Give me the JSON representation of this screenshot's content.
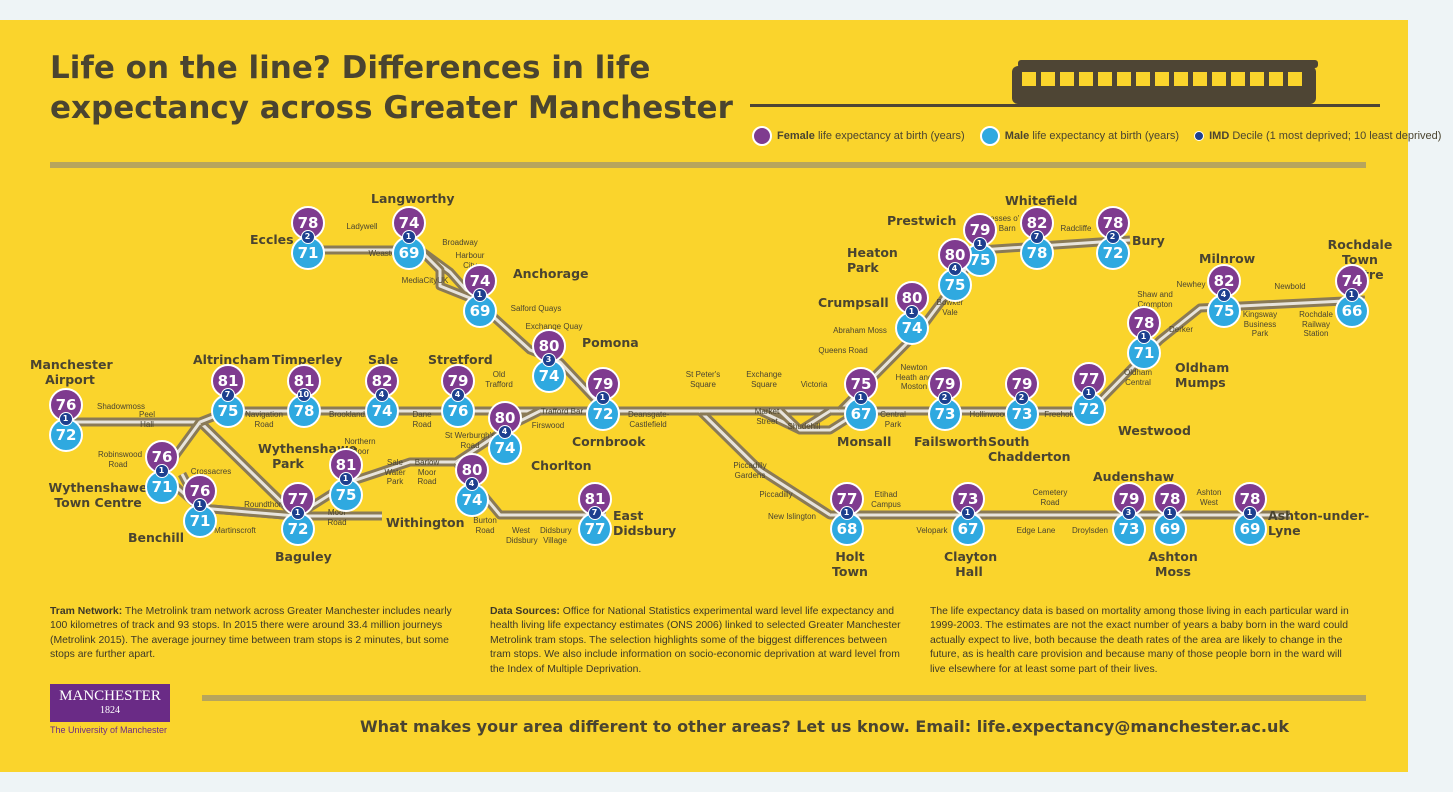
{
  "title_line1": "Life on the line? Differences in life",
  "title_line2": "expectancy across Greater Manchester",
  "legend": {
    "female_bold": "Female",
    "female_rest": "life expectancy at birth (years)",
    "male_bold": "Male",
    "male_rest": "life expectancy at birth (years)",
    "imd_bold": "IMD",
    "imd_rest": "Decile (1 most deprived; 10 least deprived)"
  },
  "colors": {
    "female": "#7f3b8f",
    "male": "#2fa9e0",
    "imd": "#1d3f8f",
    "background": "#fad42c",
    "track": "#8a7a56"
  },
  "stations": [
    {
      "id": "airport",
      "name": "Manchester Airport",
      "female": 76,
      "male": 72,
      "imd": 1
    },
    {
      "id": "wythtc",
      "name": "Wythenshawe Town Centre",
      "female": 76,
      "male": 71,
      "imd": 1
    },
    {
      "id": "benchill",
      "name": "Benchill",
      "female": 76,
      "male": 71,
      "imd": 1
    },
    {
      "id": "baguley",
      "name": "Baguley",
      "female": 77,
      "male": 72,
      "imd": 1
    },
    {
      "id": "wythpark",
      "name": "Wythenshawe Park",
      "female": 81,
      "male": 75,
      "imd": 1
    },
    {
      "id": "altrincham",
      "name": "Altrincham",
      "female": 81,
      "male": 75,
      "imd": 7
    },
    {
      "id": "timperley",
      "name": "Timperley",
      "female": 81,
      "male": 78,
      "imd": 10
    },
    {
      "id": "sale",
      "name": "Sale",
      "female": 82,
      "male": 74,
      "imd": 4
    },
    {
      "id": "stretford",
      "name": "Stretford",
      "female": 79,
      "male": 76,
      "imd": 4
    },
    {
      "id": "eccles",
      "name": "Eccles",
      "female": 78,
      "male": 71,
      "imd": 2
    },
    {
      "id": "langworthy",
      "name": "Langworthy",
      "female": 74,
      "male": 69,
      "imd": 1
    },
    {
      "id": "anchorage",
      "name": "Anchorage",
      "female": 74,
      "male": 69,
      "imd": 1
    },
    {
      "id": "pomona",
      "name": "Pomona",
      "female": 80,
      "male": 74,
      "imd": 3
    },
    {
      "id": "cornbrook",
      "name": "Cornbrook",
      "female": 79,
      "male": 72,
      "imd": 1
    },
    {
      "id": "chorlton",
      "name": "Chorlton",
      "female": 80,
      "male": 74,
      "imd": 4
    },
    {
      "id": "withington",
      "name": "Withington",
      "female": 80,
      "male": 74,
      "imd": 4
    },
    {
      "id": "eastdidsbury",
      "name": "East Didsbury",
      "female": 81,
      "male": 77,
      "imd": 7
    },
    {
      "id": "prestwich",
      "name": "Prestwich",
      "female": 79,
      "male": 75,
      "imd": 1
    },
    {
      "id": "heatonpark",
      "name": "Heaton Park",
      "female": 80,
      "male": 75,
      "imd": 4
    },
    {
      "id": "whitefield",
      "name": "Whitefield",
      "female": 82,
      "male": 78,
      "imd": 7
    },
    {
      "id": "bury",
      "name": "Bury",
      "female": 78,
      "male": 72,
      "imd": 2
    },
    {
      "id": "crumpsall",
      "name": "Crumpsall",
      "female": 80,
      "male": 74,
      "imd": 1
    },
    {
      "id": "monsall",
      "name": "Monsall",
      "female": 75,
      "male": 67,
      "imd": 1
    },
    {
      "id": "failsworth",
      "name": "Failsworth",
      "female": 79,
      "male": 73,
      "imd": 2
    },
    {
      "id": "southchad",
      "name": "South Chadderton",
      "female": 79,
      "male": 73,
      "imd": 2
    },
    {
      "id": "westwood",
      "name": "Westwood",
      "female": 77,
      "male": 72,
      "imd": 1
    },
    {
      "id": "oldhammumps",
      "name": "Oldham Mumps",
      "female": 78,
      "male": 71,
      "imd": 1
    },
    {
      "id": "milnrow",
      "name": "Milnrow",
      "female": 82,
      "male": 75,
      "imd": 4
    },
    {
      "id": "rochdale",
      "name": "Rochdale Town Centre",
      "female": 74,
      "male": 66,
      "imd": 1
    },
    {
      "id": "holttown",
      "name": "Holt Town",
      "female": 77,
      "male": 68,
      "imd": 1
    },
    {
      "id": "claytonhall",
      "name": "Clayton Hall",
      "female": 73,
      "male": 67,
      "imd": 1
    },
    {
      "id": "audenshaw",
      "name": "Audenshaw",
      "female": 79,
      "male": 73,
      "imd": 3
    },
    {
      "id": "ashtonmoss",
      "name": "Ashton Moss",
      "female": 78,
      "male": 69,
      "imd": 1
    },
    {
      "id": "ashtonul",
      "name": "Ashton-under-Lyne",
      "female": 78,
      "male": 69,
      "imd": 1
    }
  ],
  "stops": {
    "shadowmoss": "Shadowmoss",
    "peelhall": "Peel Hall",
    "robinswood": "Robinswood Road",
    "crossacres": "Crossacres",
    "roundthorn": "Roundthorn",
    "martinscroft": "Martinscroft",
    "moorroad": "Moor Road",
    "northernmoor": "Northern Moor",
    "salewater": "Sale Water Park",
    "barlowmoor": "Barlow Moor Road",
    "navigation": "Navigation Road",
    "brooklands": "Brooklands",
    "daneroad": "Dane Road",
    "oldtrafford": "Old Trafford",
    "traffordbar": "Trafford Bar",
    "firswood": "Firswood",
    "stwerburghs": "St Werburgh's Road",
    "burtonroad": "Burton Road",
    "westdidsbury": "West Didsbury",
    "didsburyvillage": "Didsbury Village",
    "ladywell": "Ladywell",
    "weaste": "Weaste",
    "broadway": "Broadway",
    "harbourcity": "Harbour City",
    "mediacity": "MediaCityUK",
    "salfordquays": "Salford Quays",
    "exchangequay": "Exchange Quay",
    "deansgate": "Deansgate-Castlefield",
    "stpeters": "St Peter's Square",
    "exchangesq": "Exchange Square",
    "marketst": "Market Street",
    "shudehill": "Shudehill",
    "victoria": "Victoria",
    "piccgardens": "Piccadilly Gardens",
    "piccadilly": "Piccadilly",
    "newislington": "New Islington",
    "etihad": "Etihad Campus",
    "velopark": "Velopark",
    "edgelane": "Edge Lane",
    "cemetery": "Cemetery Road",
    "droylsden": "Droylsden",
    "ashtonwest": "Ashton West",
    "queensroad": "Queens Road",
    "abrahammoss": "Abraham Moss",
    "bowkervale": "Bowker Vale",
    "besses": "Besses o' th' Barn",
    "radcliffe": "Radcliffe",
    "centralpark": "Central Park",
    "newtonheath": "Newton Heath and Moston",
    "hollinwood": "Hollinwood",
    "freehold": "Freehold",
    "oldhamcentral": "Oldham Central",
    "derker": "Derker",
    "shaw": "Shaw and Crompton",
    "newhey": "Newhey",
    "kingsway": "Kingsway Business Park",
    "newbold": "Newbold",
    "rochdalerail": "Rochdale Railway Station"
  },
  "text": {
    "col1_bold": "Tram Network:",
    "col1": "The Metrolink tram network across Greater Manchester includes nearly 100 kilometres of track and 93 stops. In 2015 there were around 33.4 million journeys (Metrolink 2015). The average journey time between tram stops is 2 minutes, but some stops are further apart.",
    "col2_bold": "Data Sources:",
    "col2": "Office for National Statistics experimental ward level life expectancy and health living life expectancy estimates (ONS 2006) linked to selected Greater Manchester Metrolink tram stops. The selection highlights some of the biggest differences between tram stops. We also include information on socio-economic deprivation at ward level from the Index of Multiple Deprivation.",
    "col3": "The life expectancy data is based on mortality among those living in each particular ward in 1999-2003. The estimates are not the exact number of years a baby born in the ward could actually expect to live, both because the death rates of the area are likely to change in the future, as is health care provision and because many of those people born in the ward will live elsewhere for at least some part of their lives.",
    "cta": "What makes your area different to other areas? Let us know. Email: life.expectancy@manchester.ac.uk",
    "logo_name": "MANCHESTER",
    "logo_year": "1824",
    "logo_sub": "The University of Manchester"
  }
}
